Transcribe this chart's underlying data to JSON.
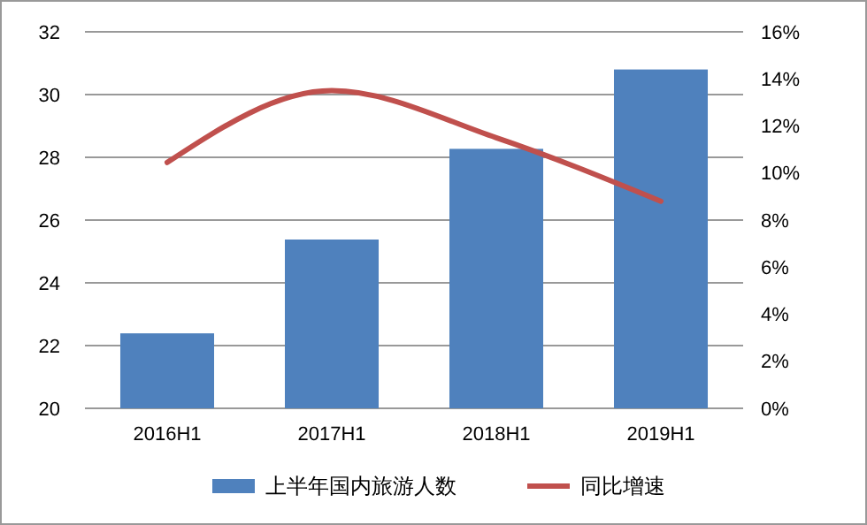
{
  "chart_data": {
    "type": "bar",
    "categories": [
      "2016H1",
      "2017H1",
      "2018H1",
      "2019H1"
    ],
    "series": [
      {
        "name": "上半年国内旅游人数",
        "color": "#4f81bd",
        "values": [
          22.39,
          25.38,
          28.27,
          30.8
        ]
      },
      {
        "name": "同比增速",
        "type": "line",
        "axis": "y2",
        "color": "#c0504d",
        "values": [
          10.45,
          13.5,
          11.5,
          8.8
        ]
      }
    ],
    "ylim": [
      20,
      32
    ],
    "yticks": [
      20,
      22,
      24,
      26,
      28,
      30,
      32
    ],
    "y2lim": [
      0,
      16
    ],
    "y2ticks": [
      {
        "value": 0,
        "label": "0%"
      },
      {
        "value": 2,
        "label": "2%"
      },
      {
        "value": 4,
        "label": "4%"
      },
      {
        "value": 6,
        "label": "6%"
      },
      {
        "value": 8,
        "label": "8%"
      },
      {
        "value": 10,
        "label": "10%"
      },
      {
        "value": 12,
        "label": "12%"
      },
      {
        "value": 14,
        "label": "14%"
      },
      {
        "value": 16,
        "label": "16%"
      }
    ],
    "grid": "y",
    "legend": "bottom",
    "marker": "none"
  }
}
